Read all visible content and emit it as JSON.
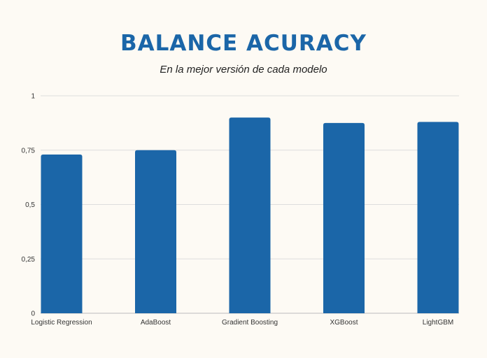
{
  "chart_data": {
    "type": "bar",
    "title": "BALANCE ACURACY",
    "subtitle": "En la mejor versión de cada modelo",
    "xlabel": "",
    "ylabel": "",
    "categories": [
      "Logistic Regression",
      "AdaBoost",
      "Gradient Boosting",
      "XGBoost",
      "LightGBM"
    ],
    "values": [
      0.73,
      0.75,
      0.9,
      0.875,
      0.88
    ],
    "ylim": [
      0,
      1
    ],
    "yticks": [
      0,
      0.25,
      0.5,
      0.75,
      1
    ],
    "ytick_labels": [
      "0",
      "0,25",
      "0,5",
      "0,75",
      "1"
    ],
    "grid": true,
    "legend": "none",
    "bar_color": "#1b66a8",
    "grid_color": "#dddddd"
  }
}
